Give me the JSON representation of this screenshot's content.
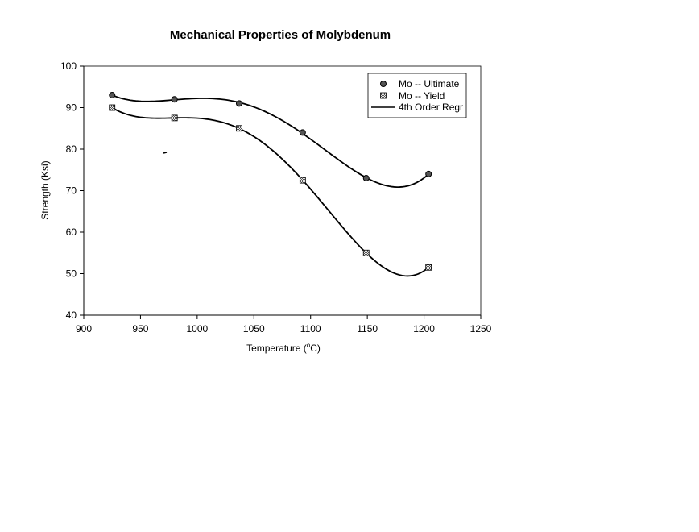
{
  "chart_data": {
    "type": "scatter",
    "title": "Mechanical Properties of Molybdenum",
    "xlabel": "Temperature (",
    "xlabel_unit": "C)",
    "xlabel_superscript": "o",
    "ylabel": "Strength (Ksi)",
    "xlim": [
      900,
      1250
    ],
    "ylim": [
      40,
      100
    ],
    "xticks": [
      900,
      950,
      1000,
      1050,
      1100,
      1150,
      1200,
      1250
    ],
    "yticks": [
      40,
      50,
      60,
      70,
      80,
      90,
      100
    ],
    "grid": false,
    "legend_position": "top-right",
    "series": [
      {
        "name": "Mo -- Ultimate",
        "marker": "circle",
        "x": [
          925,
          980,
          1037,
          1093,
          1149,
          1204
        ],
        "y": [
          93,
          92,
          91,
          84,
          73,
          74
        ]
      },
      {
        "name": "Mo -- Yield",
        "marker": "square",
        "x": [
          925,
          980,
          1037,
          1093,
          1149,
          1204
        ],
        "y": [
          90,
          87.5,
          85,
          72.5,
          55,
          51.5
        ]
      }
    ],
    "trendline": {
      "name": "4th Order Regr",
      "order": 4
    }
  }
}
